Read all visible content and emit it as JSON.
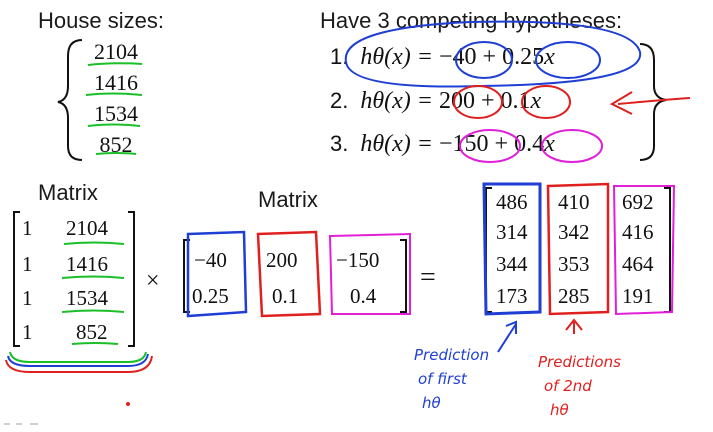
{
  "house_sizes": {
    "title": "House sizes:",
    "values": [
      "2104",
      "1416",
      "1534",
      "852"
    ]
  },
  "hypotheses": {
    "title": "Have 3 competing hypotheses:",
    "items": [
      {
        "num": "1.",
        "theta0": "−40",
        "op": "+",
        "theta1": "0.25"
      },
      {
        "num": "2.",
        "theta0": "200",
        "op": "+",
        "theta1": "0.1"
      },
      {
        "num": "3.",
        "theta0": "−150",
        "op": "+",
        "theta1": "0.4"
      }
    ],
    "lhs": "hθ(x) ="
  },
  "matrix_a": {
    "label": "Matrix",
    "rows": [
      [
        "1",
        "2104"
      ],
      [
        "1",
        "1416"
      ],
      [
        "1",
        "1534"
      ],
      [
        "1",
        "852"
      ]
    ]
  },
  "operator_times": "×",
  "matrix_b": {
    "label": "Matrix",
    "cols": [
      [
        "−40",
        "0.25"
      ],
      [
        "200",
        "0.1"
      ],
      [
        "−150",
        "0.4"
      ]
    ]
  },
  "operator_equals": "=",
  "result": {
    "cols": [
      [
        "486",
        "314",
        "344",
        "173"
      ],
      [
        "410",
        "342",
        "353",
        "285"
      ],
      [
        "692",
        "416",
        "464",
        "191"
      ]
    ]
  },
  "annotations": {
    "blue_note": [
      "Prediction",
      "of first",
      "hθ"
    ],
    "red_note": [
      "Predictions",
      "of 2nd",
      "hθ"
    ]
  },
  "colors": {
    "blue": "#1f3fd4",
    "red": "#e0201e",
    "magenta": "#e01fd8",
    "green": "#1bbf2a"
  }
}
